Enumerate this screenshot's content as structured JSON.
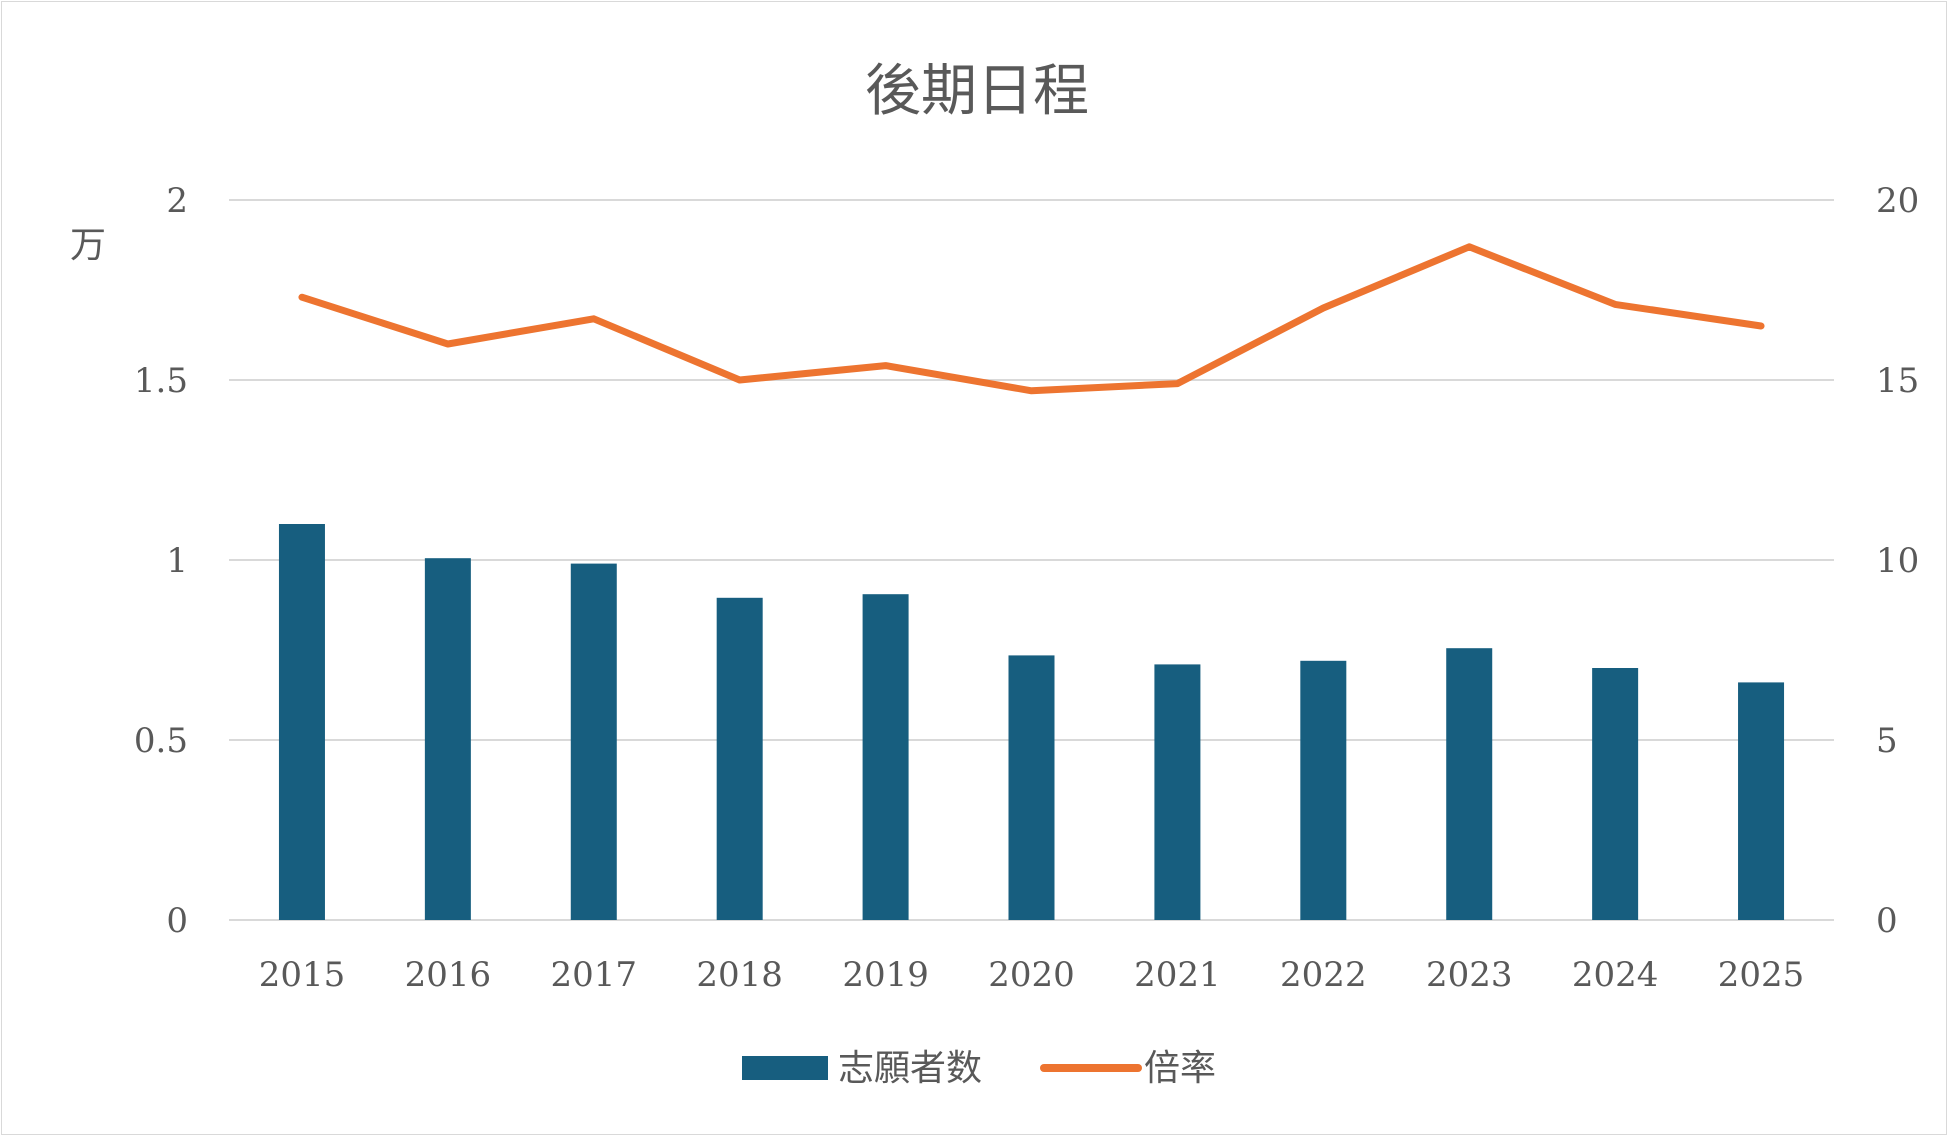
{
  "chart_data": {
    "type": "bar+line",
    "title": "後期日程",
    "categories": [
      "2015",
      "2016",
      "2017",
      "2018",
      "2019",
      "2020",
      "2021",
      "2022",
      "2023",
      "2024",
      "2025"
    ],
    "y_left": {
      "unit_label": "万",
      "ylim": [
        0,
        2
      ],
      "ticks": [
        "0",
        "0.5",
        "1",
        "1.5",
        "2"
      ]
    },
    "y_right": {
      "ylim": [
        0,
        20
      ],
      "ticks": [
        "0",
        "5",
        "10",
        "15",
        "20"
      ]
    },
    "grid": true,
    "legend_position": "bottom",
    "series": [
      {
        "name": "志願者数",
        "type": "bar",
        "axis": "left",
        "color": "#175e7f",
        "values": [
          1.1,
          1.005,
          0.99,
          0.895,
          0.905,
          0.735,
          0.71,
          0.72,
          0.755,
          0.7,
          0.66
        ]
      },
      {
        "name": "倍率",
        "type": "line",
        "axis": "right",
        "color": "#ed7430",
        "values": [
          17.3,
          16.0,
          16.7,
          15.0,
          15.4,
          14.7,
          14.9,
          17.0,
          18.7,
          17.1,
          16.5
        ]
      }
    ]
  }
}
